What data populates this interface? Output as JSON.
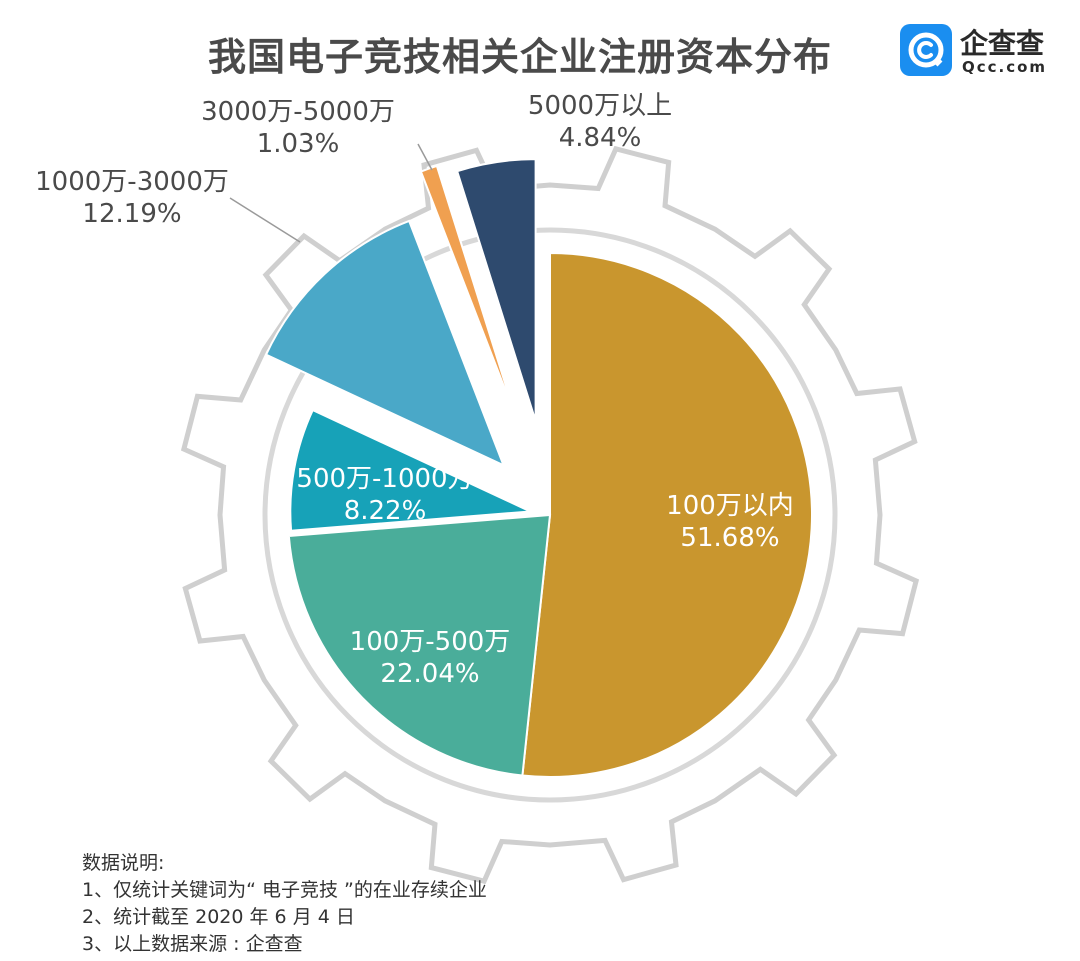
{
  "title": "我国电子竞技相关企业注册资本分布",
  "logo": {
    "name": "企查查",
    "domain": "Qcc.com",
    "color": "#1a8ef0"
  },
  "chart_data": {
    "type": "pie",
    "title": "我国电子竞技相关企业注册资本分布",
    "slices": [
      {
        "label": "100万以内",
        "percent": "51.68%",
        "value": 51.68,
        "color": "#c9962e"
      },
      {
        "label": "100万-500万",
        "percent": "22.04%",
        "value": 22.04,
        "color": "#4aad9a"
      },
      {
        "label": "500万-1000万",
        "percent": "8.22%",
        "value": 8.22,
        "color": "#17a2b8"
      },
      {
        "label": "1000万-3000万",
        "percent": "12.19%",
        "value": 12.19,
        "color": "#4aa8c8"
      },
      {
        "label": "3000万-5000万",
        "percent": "1.03%",
        "value": 1.03,
        "color": "#f0a050"
      },
      {
        "label": "5000万以上",
        "percent": "4.84%",
        "value": 4.84,
        "color": "#2e4a6e"
      }
    ],
    "start_angle_deg": 0,
    "direction": "clockwise",
    "exploded": [
      "500万-1000万",
      "1000万-3000万",
      "3000万-5000万",
      "5000万以上"
    ],
    "background_decoration": "gear-outline"
  },
  "notes": {
    "heading": "数据说明:",
    "lines": [
      "1、仅统计关键词为“ 电子竞技 ”的在业存续企业",
      "2、统计截至 2020 年 6 月 4 日",
      "3、以上数据来源 : 企查查"
    ]
  }
}
